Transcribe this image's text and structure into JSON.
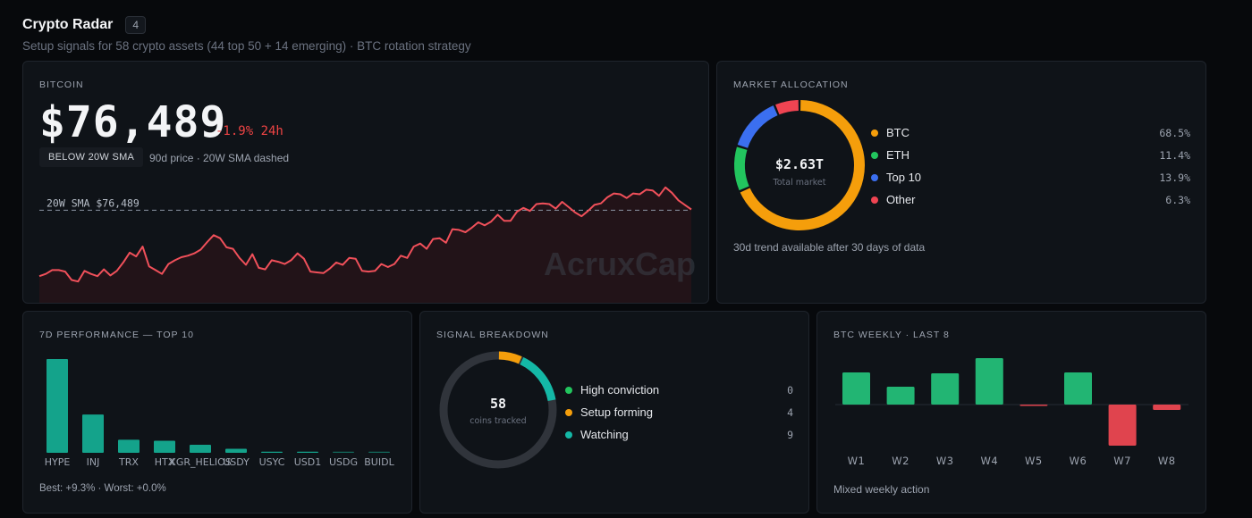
{
  "header": {
    "title": "Crypto Radar",
    "count": "4",
    "subtitle": "Setup signals for 58 crypto assets (44 top 50 + 14 emerging) · BTC rotation strategy"
  },
  "bitcoin": {
    "title": "BITCOIN",
    "price": "$76,489",
    "change": "-1.9% 24h",
    "sma_badge": "BELOW 20W SMA",
    "note": "90d price · 20W SMA dashed",
    "sma_label": "20W SMA $76,489",
    "watermark": "AcruxCap",
    "colors": {
      "line": "#f0505a",
      "sma": "#8b95a3"
    },
    "chart_data": {
      "type": "line",
      "sma": 76489,
      "values": [
        67800,
        68100,
        68600,
        68600,
        68400,
        67300,
        67100,
        68500,
        68100,
        67800,
        68700,
        67900,
        68500,
        69600,
        70900,
        70400,
        71700,
        69100,
        68600,
        68100,
        69400,
        69900,
        70300,
        70500,
        70800,
        71300,
        72300,
        73200,
        72800,
        71600,
        71400,
        70200,
        69300,
        70700,
        68900,
        68700,
        69900,
        69700,
        69400,
        69900,
        70800,
        70100,
        68400,
        68300,
        68200,
        68800,
        69600,
        69300,
        70200,
        70100,
        68500,
        68400,
        68500,
        69400,
        69000,
        69400,
        70500,
        70200,
        71700,
        72100,
        71400,
        72700,
        72800,
        72200,
        74000,
        73900,
        73600,
        74200,
        74900,
        74500,
        75000,
        75900,
        75100,
        75100,
        76300,
        76800,
        76400,
        77300,
        77400,
        77300,
        76700,
        77600,
        76900,
        76200,
        75700,
        76400,
        77200,
        77400,
        78200,
        78700,
        78600,
        78100,
        78700,
        78600,
        79200,
        79100,
        78400,
        79500,
        78800,
        77800,
        77200,
        76600
      ]
    }
  },
  "market": {
    "title": "MARKET ALLOCATION",
    "total_value": "$2.63T",
    "total_label": "Total market",
    "note": "30d trend available after 30 days of data",
    "chart_data": {
      "type": "pie",
      "categories": [
        "BTC",
        "ETH",
        "Top 10",
        "Other"
      ],
      "values": [
        68.5,
        11.4,
        13.9,
        6.3
      ],
      "value_labels": [
        "68.5%",
        "11.4%",
        "13.9%",
        "6.3%"
      ],
      "colors": [
        "#f59e0b",
        "#22c55e",
        "#3b6ff0",
        "#ef4452"
      ]
    }
  },
  "perf": {
    "title": "7D PERFORMANCE — TOP 10",
    "footer": "Best: +9.3% · Worst: +0.0%",
    "color": "#14a38b",
    "chart_data": {
      "type": "bar",
      "categories": [
        "HYPE",
        "INJ",
        "TRX",
        "HTX",
        "XGR_HELIOS",
        "USDY",
        "USYC",
        "USD1",
        "USDG",
        "BUIDL"
      ],
      "values": [
        9.3,
        3.8,
        1.3,
        1.2,
        0.8,
        0.4,
        0.1,
        0.1,
        0.0,
        0.0
      ],
      "ylim": [
        0,
        9.3
      ]
    }
  },
  "signal": {
    "title": "SIGNAL BREAKDOWN",
    "center_value": "58",
    "center_label": "coins tracked",
    "track_color": "#30343b",
    "chart_data": {
      "type": "pie",
      "total": 58,
      "categories": [
        "High conviction",
        "Setup forming",
        "Watching"
      ],
      "values": [
        0,
        4,
        9
      ],
      "value_labels": [
        "0",
        "4",
        "9"
      ],
      "colors": [
        "#22c55e",
        "#f59e0b",
        "#14b8a6"
      ]
    }
  },
  "weekly": {
    "title": "BTC WEEKLY · LAST 8",
    "footer": "Mixed weekly action",
    "colors": {
      "up": "#22b573",
      "down": "#e0444e"
    },
    "chart_data": {
      "type": "bar",
      "categories": [
        "W1",
        "W2",
        "W3",
        "W4",
        "W5",
        "W6",
        "W7",
        "W8"
      ],
      "values": [
        3.6,
        2.0,
        3.5,
        5.2,
        -0.1,
        3.6,
        -4.6,
        -0.6
      ]
    }
  }
}
